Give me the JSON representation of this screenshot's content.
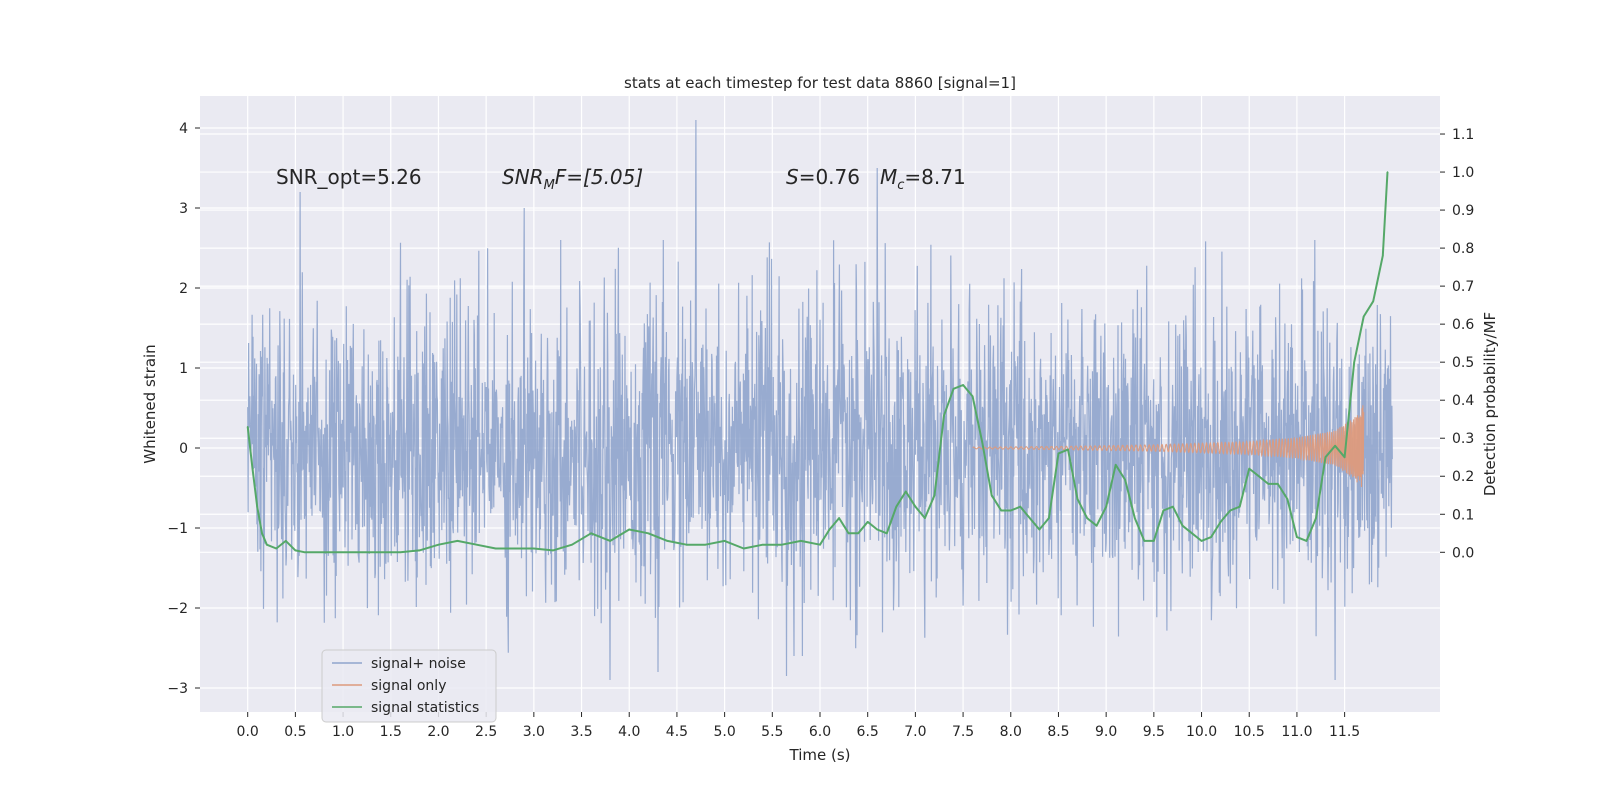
{
  "chart_data": {
    "type": "line",
    "title": "stats at each timestep for test data 8860 [signal=1]",
    "xlabel": "Time (s)",
    "ylabel_left": "Whitened strain",
    "ylabel_right": "Detection probability/MF",
    "xlim": [
      -0.5,
      12.5
    ],
    "ylim_left": [
      -3.3,
      4.4
    ],
    "ylim_right": [
      -0.42,
      1.2
    ],
    "x_ticks": [
      "0.0",
      "0.5",
      "1.0",
      "1.5",
      "2.0",
      "2.5",
      "3.0",
      "3.5",
      "4.0",
      "4.5",
      "5.0",
      "5.5",
      "6.0",
      "6.5",
      "7.0",
      "7.5",
      "8.0",
      "8.5",
      "9.0",
      "9.5",
      "10.0",
      "10.5",
      "11.0",
      "11.5"
    ],
    "y_ticks_left": [
      "−3",
      "−2",
      "−1",
      "0",
      "1",
      "2",
      "3",
      "4"
    ],
    "y_ticks_right": [
      "0.0",
      "0.1",
      "0.2",
      "0.3",
      "0.4",
      "0.5",
      "0.6",
      "0.7",
      "0.8",
      "0.9",
      "1.0",
      "1.1"
    ],
    "annotations": {
      "snr_opt": "SNR_opt=5.26",
      "snr_mf_main": "SNR",
      "snr_mf_sub": "M",
      "snr_mf_rest": "F=[5.05]",
      "s_sym": "S",
      "s_val": "=0.76",
      "mc_sym": "M",
      "mc_sub": "c",
      "mc_val": "=8.71"
    },
    "series": [
      {
        "name": "signal+ noise",
        "color": "#8fa4cc",
        "description": "noisy whitened strain, roughly Gaussian with std ~0.9 over 0 to 12 s",
        "x_range": [
          0.0,
          12.0
        ],
        "typical_range": [
          -2.3,
          2.3
        ],
        "extremes": [
          {
            "x": 0.55,
            "y": 3.2
          },
          {
            "x": 2.9,
            "y": 3.0
          },
          {
            "x": 4.7,
            "y": 4.1
          },
          {
            "x": 6.6,
            "y": 3.5
          },
          {
            "x": 3.8,
            "y": -2.9
          },
          {
            "x": 11.4,
            "y": -2.9
          },
          {
            "x": 5.65,
            "y": -2.85
          },
          {
            "x": 4.3,
            "y": -2.8
          }
        ]
      },
      {
        "name": "signal only",
        "color": "#dd9a7c",
        "description": "chirp waveform with growing amplitude, merger near 11.7 s",
        "x_range": [
          7.6,
          11.7
        ],
        "envelope": [
          {
            "x": 7.6,
            "amp": 0.01
          },
          {
            "x": 8.5,
            "amp": 0.02
          },
          {
            "x": 9.5,
            "amp": 0.04
          },
          {
            "x": 10.5,
            "amp": 0.08
          },
          {
            "x": 11.0,
            "amp": 0.13
          },
          {
            "x": 11.4,
            "amp": 0.22
          },
          {
            "x": 11.6,
            "amp": 0.38
          },
          {
            "x": 11.7,
            "amp": 0.55
          }
        ]
      },
      {
        "name": "signal statistics",
        "color": "#55a868",
        "axis": "right",
        "x": [
          0.0,
          0.05,
          0.1,
          0.15,
          0.2,
          0.3,
          0.4,
          0.5,
          0.6,
          0.8,
          1.0,
          1.2,
          1.4,
          1.6,
          1.8,
          2.0,
          2.2,
          2.4,
          2.6,
          2.8,
          3.0,
          3.2,
          3.4,
          3.6,
          3.8,
          4.0,
          4.2,
          4.4,
          4.6,
          4.8,
          5.0,
          5.2,
          5.4,
          5.6,
          5.8,
          6.0,
          6.1,
          6.2,
          6.3,
          6.4,
          6.5,
          6.6,
          6.7,
          6.8,
          6.9,
          7.0,
          7.1,
          7.2,
          7.3,
          7.4,
          7.5,
          7.6,
          7.7,
          7.8,
          7.9,
          8.0,
          8.1,
          8.2,
          8.3,
          8.4,
          8.5,
          8.6,
          8.7,
          8.8,
          8.9,
          9.0,
          9.1,
          9.2,
          9.3,
          9.4,
          9.5,
          9.6,
          9.7,
          9.8,
          9.9,
          10.0,
          10.1,
          10.2,
          10.3,
          10.4,
          10.5,
          10.6,
          10.7,
          10.8,
          10.9,
          11.0,
          11.1,
          11.2,
          11.3,
          11.4,
          11.5,
          11.6,
          11.7,
          11.8,
          11.9,
          11.95
        ],
        "y": [
          0.33,
          0.22,
          0.12,
          0.05,
          0.02,
          0.01,
          0.03,
          0.005,
          0.0,
          0.0,
          0.0,
          0.0,
          0.0,
          0.0,
          0.005,
          0.02,
          0.03,
          0.02,
          0.01,
          0.01,
          0.01,
          0.005,
          0.02,
          0.05,
          0.03,
          0.06,
          0.05,
          0.03,
          0.02,
          0.02,
          0.03,
          0.01,
          0.02,
          0.02,
          0.03,
          0.02,
          0.06,
          0.09,
          0.05,
          0.05,
          0.08,
          0.06,
          0.05,
          0.12,
          0.16,
          0.12,
          0.09,
          0.15,
          0.36,
          0.43,
          0.44,
          0.41,
          0.29,
          0.15,
          0.11,
          0.11,
          0.12,
          0.09,
          0.06,
          0.09,
          0.26,
          0.27,
          0.14,
          0.09,
          0.07,
          0.12,
          0.23,
          0.19,
          0.09,
          0.03,
          0.03,
          0.11,
          0.12,
          0.07,
          0.05,
          0.03,
          0.04,
          0.08,
          0.11,
          0.12,
          0.22,
          0.2,
          0.18,
          0.18,
          0.14,
          0.04,
          0.03,
          0.09,
          0.25,
          0.28,
          0.25,
          0.5,
          0.62,
          0.66,
          0.78,
          1.0
        ]
      }
    ],
    "legend": {
      "placement": "lower-left",
      "entries": [
        "signal+ noise",
        "signal only",
        "signal statistics"
      ]
    }
  }
}
